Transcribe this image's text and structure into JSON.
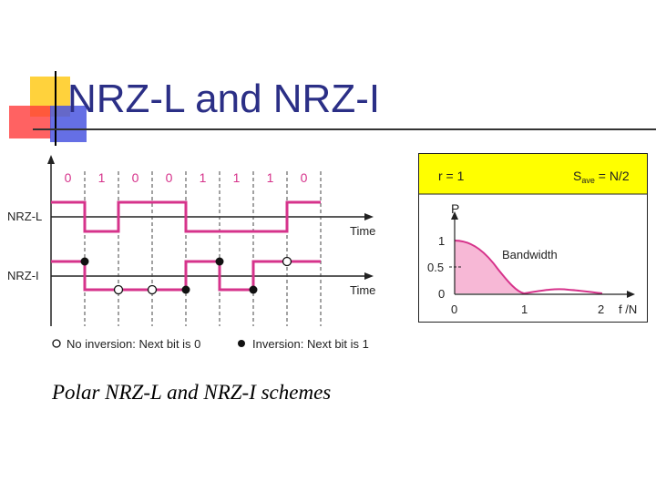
{
  "slide": {
    "title": "NRZ-L and NRZ-I",
    "caption": "Polar NRZ-L and NRZ-I schemes"
  },
  "timing_diagram": {
    "bits": [
      "0",
      "1",
      "0",
      "0",
      "1",
      "1",
      "1",
      "0"
    ],
    "rows": [
      {
        "label": "NRZ-L",
        "axis_label": "Time"
      },
      {
        "label": "NRZ-I",
        "axis_label": "Time"
      }
    ],
    "legend": {
      "no_inversion": "No inversion: Next bit is 0",
      "inversion": "Inversion: Next bit is 1"
    },
    "colors": {
      "signal": "#d6338b",
      "bits": "#d6338b",
      "axis": "#222222"
    }
  },
  "spectrum": {
    "header_left": "r = 1",
    "header_right_main": "S",
    "header_right_sub": "ave",
    "header_right_rest": " = N/2",
    "y_axis_label": "P",
    "x_axis_label": "f /N",
    "area_label": "Bandwidth",
    "y_ticks": [
      "1",
      "0.5",
      "0"
    ],
    "x_ticks": [
      "0",
      "1",
      "2"
    ],
    "colors": {
      "header": "#ffff00",
      "fill": "#f7b8d6",
      "curve": "#d6338b"
    }
  }
}
